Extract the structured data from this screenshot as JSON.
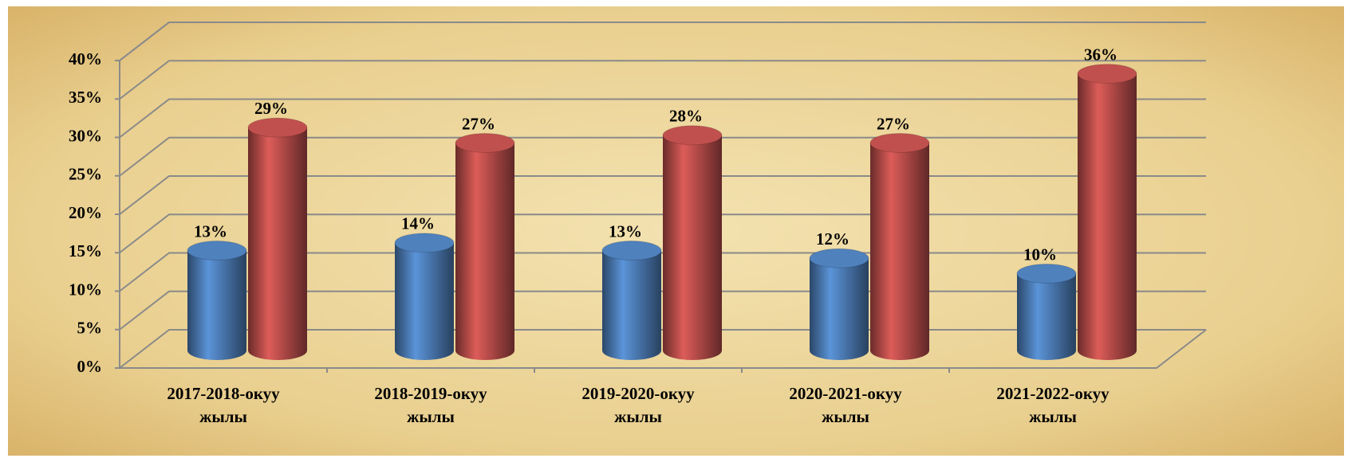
{
  "chart_data": {
    "type": "bar3d",
    "categories": [
      "2017-2018-окуу жылы",
      "2018-2019-окуу жылы",
      "2019-2020-окуу жылы",
      "2020-2021-окуу жылы",
      "2021-2022-окуу жылы"
    ],
    "series": [
      {
        "color": "#4f81bd",
        "values": [
          13,
          14,
          13,
          12,
          10
        ],
        "value_labels": [
          "13%",
          "14%",
          "13%",
          "12%",
          "10%"
        ]
      },
      {
        "color": "#c0504d",
        "values": [
          29,
          27,
          28,
          27,
          36
        ],
        "value_labels": [
          "29%",
          "27%",
          "28%",
          "27%",
          "36%"
        ]
      }
    ],
    "ylim": [
      0,
      40
    ],
    "yticks": [
      {
        "value": 0,
        "label": "0%"
      },
      {
        "value": 5,
        "label": "5%"
      },
      {
        "value": 10,
        "label": "10%"
      },
      {
        "value": 15,
        "label": "15%"
      },
      {
        "value": 20,
        "label": "20%"
      },
      {
        "value": 25,
        "label": "25%"
      },
      {
        "value": 30,
        "label": "30%"
      },
      {
        "value": 35,
        "label": "35%"
      },
      {
        "value": 40,
        "label": "40%"
      }
    ],
    "grid": true
  }
}
